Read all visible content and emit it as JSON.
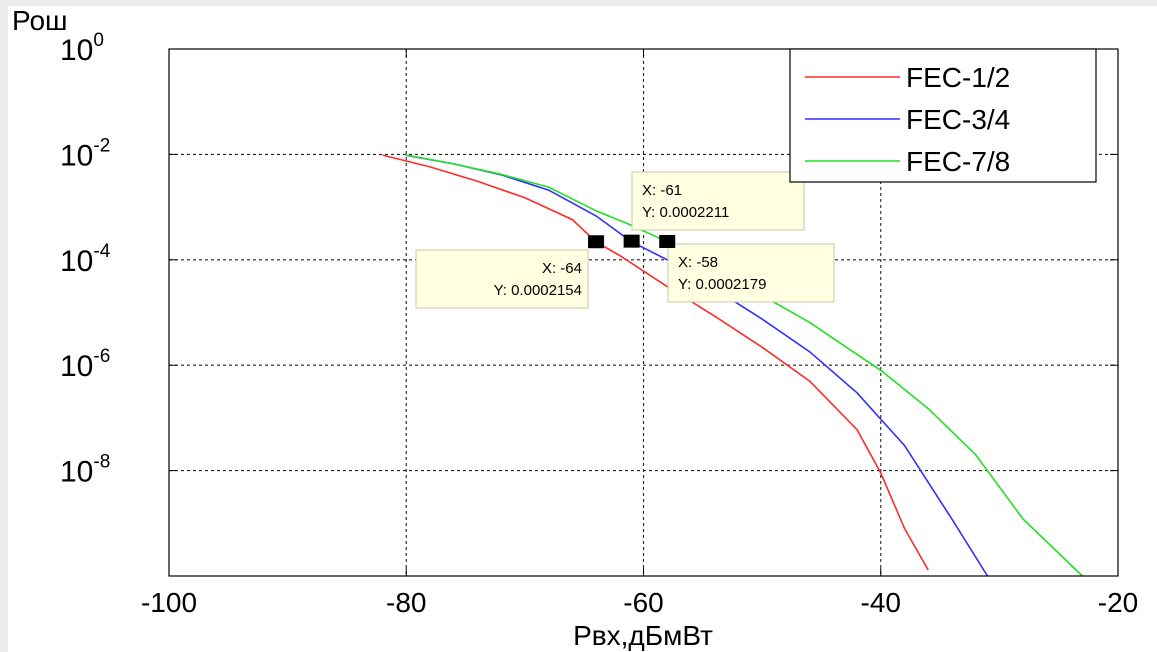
{
  "chart_data": {
    "type": "line",
    "title": "",
    "xlabel": "Рвх,дБмВт",
    "ylabel": "Рош",
    "yscale": "log",
    "xlim": [
      -100,
      -20
    ],
    "ylim": [
      1e-10,
      1
    ],
    "grid": true,
    "legend_position": "top-right",
    "xticks": [
      {
        "value": -100,
        "label": "-100"
      },
      {
        "value": -80,
        "label": "-80"
      },
      {
        "value": -60,
        "label": "-60"
      },
      {
        "value": -40,
        "label": "-40"
      },
      {
        "value": -20,
        "label": "-20"
      }
    ],
    "yticks": [
      {
        "value": 1,
        "base": "10",
        "exp": "0"
      },
      {
        "value": 0.01,
        "base": "10",
        "exp": "-2"
      },
      {
        "value": 0.0001,
        "base": "10",
        "exp": "-4"
      },
      {
        "value": 1e-06,
        "base": "10",
        "exp": "-6"
      },
      {
        "value": 1e-08,
        "base": "10",
        "exp": "-8"
      }
    ],
    "series": [
      {
        "name": "FEC-1/2",
        "color": "#ff2a2a",
        "x": [
          -82,
          -78,
          -74,
          -70,
          -66,
          -64,
          -62,
          -58,
          -54,
          -50,
          -46,
          -42,
          -40,
          -38,
          -36
        ],
        "y": [
          0.0097,
          0.0058,
          0.0031,
          0.0015,
          0.00058,
          0.00022,
          0.00012,
          3.1e-05,
          8.5e-06,
          2.2e-06,
          5e-07,
          6e-08,
          9e-09,
          8e-10,
          1.3e-10
        ]
      },
      {
        "name": "FEC-3/4",
        "color": "#3030ff",
        "x": [
          -80,
          -76,
          -72,
          -68,
          -64,
          -61,
          -58,
          -54,
          -50,
          -46,
          -42,
          -38,
          -34,
          -31
        ],
        "y": [
          0.0096,
          0.0066,
          0.0041,
          0.0021,
          0.00068,
          0.00022,
          0.0001,
          2.8e-05,
          7.5e-06,
          1.8e-06,
          3e-07,
          3e-08,
          1.2e-09,
          1e-10
        ]
      },
      {
        "name": "FEC-7/8",
        "color": "#22e022",
        "x": [
          -80,
          -76,
          -72,
          -68,
          -64,
          -61,
          -58,
          -54,
          -50,
          -46,
          -42,
          -40,
          -36,
          -32,
          -28,
          -23
        ],
        "y": [
          0.0097,
          0.0066,
          0.0042,
          0.0024,
          0.00085,
          0.00045,
          0.00022,
          6.2e-05,
          2.1e-05,
          6.5e-06,
          1.6e-06,
          8e-07,
          1.5e-07,
          2e-08,
          1.2e-09,
          1e-10
        ]
      }
    ],
    "annotations": [
      {
        "x": -64,
        "y": 0.0002154,
        "x_text": "X: -64",
        "y_text": "Y: 0.0002154"
      },
      {
        "x": -61,
        "y": 0.0002211,
        "x_text": "X: -61",
        "y_text": "Y: 0.0002211"
      },
      {
        "x": -58,
        "y": 0.0002179,
        "x_text": "X: -58",
        "y_text": "Y: 0.0002179"
      }
    ]
  }
}
